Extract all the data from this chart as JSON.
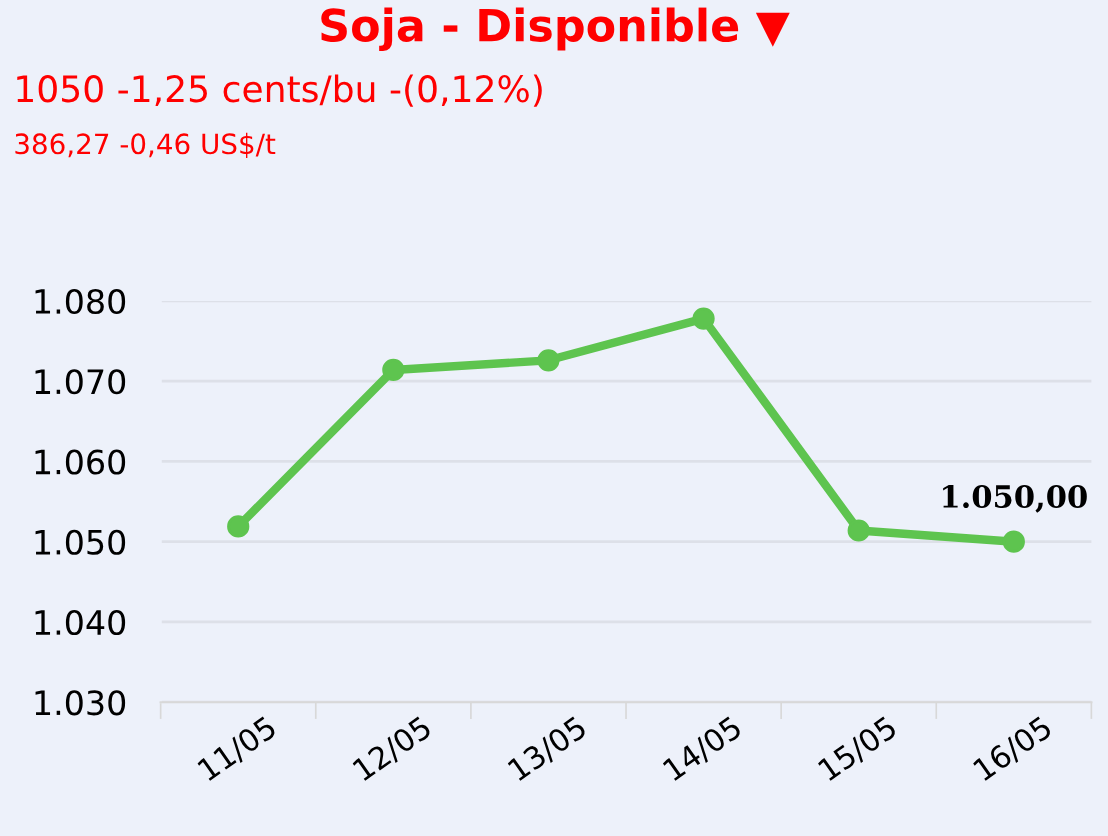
{
  "chart_data": {
    "type": "line",
    "title": "Soja - Disponible ▼",
    "subtitle": "1050 -1,25 cents/bu -(0,12%)",
    "annotations": [
      "386,27 -0,46 US$/t"
    ],
    "categories": [
      "11/05",
      "12/05",
      "13/05",
      "14/05",
      "15/05",
      "16/05"
    ],
    "series": [
      {
        "color": "#5ec44f",
        "values": [
          1051.9,
          1071.4,
          1072.6,
          1077.8,
          1051.4,
          1050.0
        ],
        "value_labels": [
          null,
          null,
          null,
          null,
          null,
          "1.050,00"
        ]
      }
    ],
    "ylim": [
      1030,
      1080
    ],
    "yticks": [
      {
        "value": 1030,
        "label": "1.030"
      },
      {
        "value": 1040,
        "label": "1.040"
      },
      {
        "value": 1050,
        "label": "1.050"
      },
      {
        "value": 1060,
        "label": "1.060"
      },
      {
        "value": 1070,
        "label": "1.070"
      },
      {
        "value": 1080,
        "label": "1.080"
      }
    ],
    "grid": "y",
    "marker": "circle",
    "line_style": "solid",
    "legend": false
  }
}
